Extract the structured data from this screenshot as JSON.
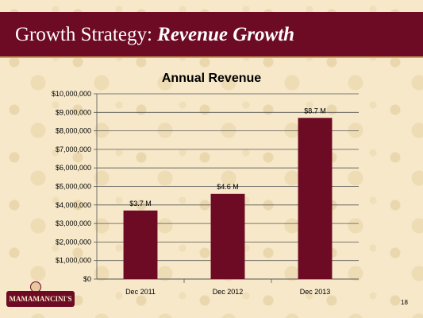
{
  "slide": {
    "title_plain": "Growth Strategy: ",
    "title_emphasis": "Revenue Growth",
    "logo_text": "MAMAMANCINI'S",
    "page_number": "18"
  },
  "chart_data": {
    "type": "bar",
    "title": "Annual Revenue",
    "categories": [
      "Dec 2011",
      "Dec 2012",
      "Dec 2013"
    ],
    "values": [
      3700000,
      4600000,
      8700000
    ],
    "data_labels": [
      "$3.7 M",
      "$4.6 M",
      "$8.7 M"
    ],
    "ylim": [
      0,
      10000000
    ],
    "yticks": [
      0,
      1000000,
      2000000,
      3000000,
      4000000,
      5000000,
      6000000,
      7000000,
      8000000,
      9000000,
      10000000
    ],
    "ytick_labels": [
      "$0",
      "$1,000,000",
      "$2,000,000",
      "$3,000,000",
      "$4,000,000",
      "$5,000,000",
      "$6,000,000",
      "$7,000,000",
      "$8,000,000",
      "$9,000,000",
      "$10,000,000"
    ],
    "grid": true,
    "bar_color": "#6d0a24"
  }
}
